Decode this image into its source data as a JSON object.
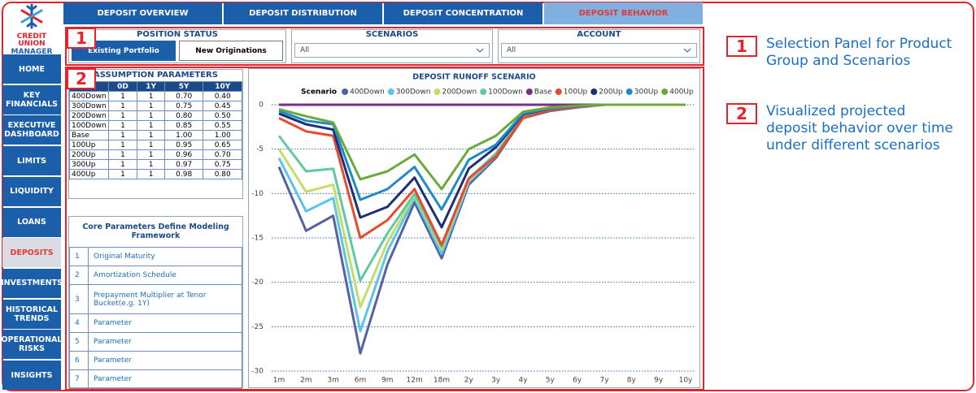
{
  "logo": {
    "line1": "CREDIT UNION",
    "line2": "MANAGER"
  },
  "nav": [
    "HOME",
    "KEY FINANCIALS",
    "EXECUTIVE DASHBOARD",
    "LIMITS",
    "LIQUIDITY",
    "LOANS",
    "DEPOSITS",
    "INVESTMENTS",
    "HISTORICAL TRENDS",
    "OPERATIONAL RISKS",
    "INSIGHTS"
  ],
  "tabs": [
    "DEPOSIT OVERVIEW",
    "DEPOSIT DISTRIBUTION",
    "DEPOSIT CONCENTRATION",
    "DEPOSIT BEHAVIOR"
  ],
  "position_status": {
    "title": "POSITION STATUS",
    "options": [
      "Existing Portfolio",
      "New Originations"
    ]
  },
  "scenarios": {
    "title": "SCENARIOS",
    "value": "All"
  },
  "account": {
    "title": "ACCOUNT",
    "value": "All"
  },
  "assumptions": {
    "title": "ASSUMPTION PARAMETERS",
    "columns": [
      "0D",
      "1Y",
      "5Y",
      "10Y"
    ],
    "rows": [
      [
        "400Down",
        "1",
        "1",
        "0.70",
        "0.40"
      ],
      [
        "300Down",
        "1",
        "1",
        "0.75",
        "0.45"
      ],
      [
        "200Down",
        "1",
        "1",
        "0.80",
        "0.50"
      ],
      [
        "100Down",
        "1",
        "1",
        "0.85",
        "0.55"
      ],
      [
        "Base",
        "1",
        "1",
        "1.00",
        "1.00"
      ],
      [
        "100Up",
        "1",
        "1",
        "0.95",
        "0.65"
      ],
      [
        "200Up",
        "1",
        "1",
        "0.96",
        "0.70"
      ],
      [
        "300Up",
        "1",
        "1",
        "0.97",
        "0.75"
      ],
      [
        "400Up",
        "1",
        "1",
        "0.98",
        "0.80"
      ]
    ]
  },
  "core_parameters": {
    "title": "Core Parameters Define Modeling Framework",
    "rows": [
      [
        "1",
        "Original Maturity"
      ],
      [
        "2",
        "Amortization Schedule"
      ],
      [
        "3",
        "Prepayment Multiplier at Tenor Bucket(e.g. 1Y)"
      ],
      [
        "4",
        "Parameter"
      ],
      [
        "5",
        "Parameter"
      ],
      [
        "6",
        "Parameter"
      ],
      [
        "7",
        "Parameter"
      ]
    ]
  },
  "callouts": [
    {
      "number": "1",
      "text": "Selection Panel for Product Group and Scenarios"
    },
    {
      "number": "2",
      "text": "Visualized projected deposit behavior over time under different scenarios"
    }
  ],
  "chart_data": {
    "type": "line",
    "title": "DEPOSIT RUNOFF SCENARIO",
    "legend_title": "Scenario",
    "categories": [
      "1m",
      "2m",
      "3m",
      "6m",
      "9m",
      "12m",
      "18m",
      "2y",
      "3y",
      "4y",
      "5y",
      "6y",
      "7y",
      "8y",
      "9y",
      "10y"
    ],
    "series": [
      {
        "name": "400Down",
        "color": "#5461a6",
        "values": [
          -7,
          -14.2,
          -12.5,
          -28,
          -18,
          -11,
          -17.3,
          -9,
          -6,
          -1.5,
          -0.7,
          -0.3,
          0,
          0,
          0,
          0
        ]
      },
      {
        "name": "300Down",
        "color": "#5bc4ec",
        "values": [
          -6,
          -12,
          -10.5,
          -25.5,
          -16.5,
          -10.5,
          -16.8,
          -8.7,
          -5.8,
          -1.4,
          -0.6,
          -0.2,
          0,
          0,
          0,
          0
        ]
      },
      {
        "name": "200Down",
        "color": "#c3dc6a",
        "values": [
          -5,
          -9.8,
          -9,
          -22.8,
          -15.5,
          -10.2,
          -16.3,
          -8.5,
          -5.6,
          -1.3,
          -0.5,
          -0.2,
          0,
          0,
          0,
          0
        ]
      },
      {
        "name": "100Down",
        "color": "#5fc9a5",
        "values": [
          -3.5,
          -7.5,
          -7.2,
          -19.8,
          -14.5,
          -10,
          -16,
          -8.3,
          -5.5,
          -1.2,
          -0.5,
          -0.2,
          0,
          0,
          0,
          0
        ]
      },
      {
        "name": "Base",
        "color": "#7b2d8e",
        "values": [
          0,
          0,
          0,
          0,
          0,
          0,
          0,
          0,
          0,
          0,
          0,
          0,
          0,
          0,
          0,
          0
        ]
      },
      {
        "name": "100Up",
        "color": "#e8492f",
        "values": [
          -1.5,
          -3,
          -3.5,
          -15,
          -13,
          -9.5,
          -15.8,
          -8.3,
          -5.8,
          -1.5,
          -0.6,
          -0.2,
          0,
          0,
          0,
          0
        ]
      },
      {
        "name": "200Up",
        "color": "#1f2e7a",
        "values": [
          -1,
          -2.2,
          -2.8,
          -12.7,
          -11.5,
          -8.2,
          -13.8,
          -7.2,
          -4.8,
          -1.1,
          -0.4,
          -0.1,
          0,
          0,
          0,
          0
        ]
      },
      {
        "name": "300Up",
        "color": "#1f8ac9",
        "values": [
          -0.7,
          -1.8,
          -2.2,
          -10.7,
          -9.5,
          -7,
          -11.8,
          -6.2,
          -4.5,
          -1,
          -0.4,
          -0.1,
          0,
          0,
          0,
          0
        ]
      },
      {
        "name": "400Up",
        "color": "#6aaa3a",
        "values": [
          -0.5,
          -1.3,
          -2,
          -8.4,
          -7.5,
          -5.6,
          -9.5,
          -5,
          -3.5,
          -0.8,
          -0.3,
          -0.1,
          0,
          0,
          0,
          0
        ]
      }
    ],
    "ylim": [
      -30,
      0
    ],
    "yticks": [
      -30,
      -25,
      -20,
      -15,
      -10,
      -5,
      0
    ],
    "grid": true
  }
}
